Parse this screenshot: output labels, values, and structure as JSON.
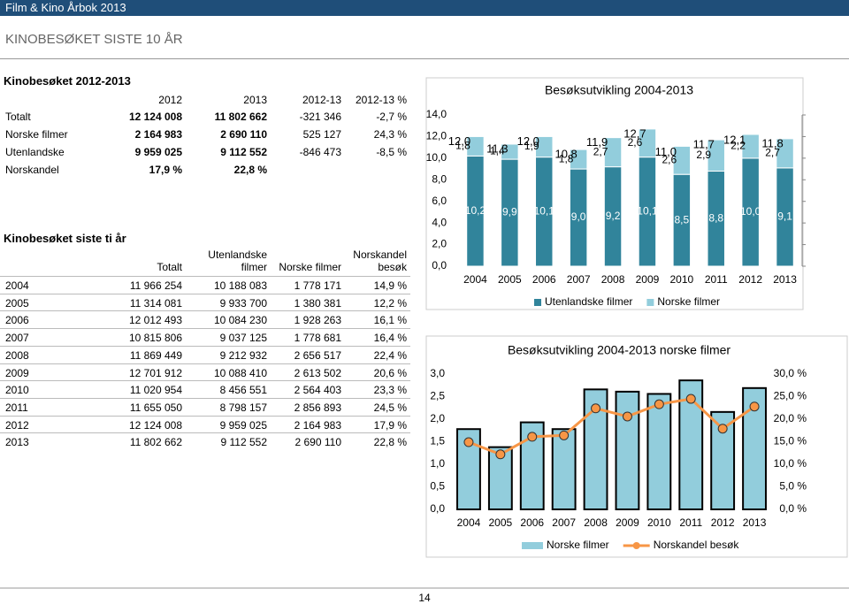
{
  "header": {
    "publication": "Film & Kino Årbok 2013",
    "section": "KINOBESØKET SISTE 10 ÅR"
  },
  "table1": {
    "title": "Kinobesøket 2012-2013",
    "columns": [
      "2012",
      "2013",
      "2012-13",
      "2012-13 %"
    ],
    "rows": [
      [
        "Totalt",
        "12 124 008",
        "11 802 662",
        "-321 346",
        "-2,7 %"
      ],
      [
        "Norske filmer",
        "2 164 983",
        "2 690 110",
        "525 127",
        "24,3 %"
      ],
      [
        "Utenlandske",
        "9 959 025",
        "9 112 552",
        "-846 473",
        "-8,5 %"
      ],
      [
        "Norskandel",
        "17,9 %",
        "22,8 %",
        "",
        ""
      ]
    ]
  },
  "table2": {
    "title": "Kinobesøket siste ti år",
    "columns": [
      "Totalt",
      "Utenlandske filmer",
      "Norske filmer",
      "Norskandel besøk"
    ],
    "rows": [
      [
        "2004",
        "11 966 254",
        "10 188 083",
        "1 778 171",
        "14,9 %"
      ],
      [
        "2005",
        "11 314 081",
        "9 933 700",
        "1 380 381",
        "12,2 %"
      ],
      [
        "2006",
        "12 012 493",
        "10 084 230",
        "1 928 263",
        "16,1 %"
      ],
      [
        "2007",
        "10 815 806",
        "9 037 125",
        "1 778 681",
        "16,4 %"
      ],
      [
        "2008",
        "11 869 449",
        "9 212 932",
        "2 656 517",
        "22,4 %"
      ],
      [
        "2009",
        "12 701 912",
        "10 088 410",
        "2 613 502",
        "20,6 %"
      ],
      [
        "2010",
        "11 020 954",
        "8 456 551",
        "2 564 403",
        "23,3 %"
      ],
      [
        "2011",
        "11 655 050",
        "8 798 157",
        "2 856 893",
        "24,5 %"
      ],
      [
        "2012",
        "12 124 008",
        "9 959 025",
        "2 164 983",
        "17,9 %"
      ],
      [
        "2013",
        "11 802 662",
        "9 112 552",
        "2 690 110",
        "22,8 %"
      ]
    ]
  },
  "chart_data": [
    {
      "type": "bar",
      "stacked": true,
      "title": "Besøksutvikling 2004-2013",
      "categories": [
        "2004",
        "2005",
        "2006",
        "2007",
        "2008",
        "2009",
        "2010",
        "2011",
        "2012",
        "2013"
      ],
      "series": [
        {
          "name": "Utenlandske filmer",
          "color": "#31849b",
          "values": [
            10.2,
            9.9,
            10.1,
            9.0,
            9.2,
            10.1,
            8.5,
            8.8,
            10.0,
            9.1
          ],
          "value_labels": [
            "10,2",
            "9,9",
            "10,1",
            "9,0",
            "9,2",
            "10,1",
            "8,5",
            "8,8",
            "10,0",
            "9,1"
          ]
        },
        {
          "name": "Norske filmer",
          "color": "#92cddc",
          "values": [
            1.8,
            1.4,
            1.9,
            1.8,
            2.7,
            2.6,
            2.6,
            2.9,
            2.2,
            2.7
          ],
          "value_labels": [
            "1,8",
            "1,4",
            "1,9",
            "1,8",
            "2,7",
            "2,6",
            "2,6",
            "2,9",
            "2,2",
            "2,7"
          ]
        }
      ],
      "totals": {
        "values": [
          12.0,
          11.3,
          12.0,
          10.8,
          11.9,
          12.7,
          11.0,
          11.7,
          12.1,
          11.8
        ],
        "value_labels": [
          "12,0",
          "11,3",
          "12,0",
          "10,8",
          "11,9",
          "12,7",
          "11,0",
          "11,7",
          "12,1",
          "11,8"
        ]
      },
      "ylim": [
        0,
        14
      ],
      "yticks": [
        {
          "value": 0,
          "label": "0,0"
        },
        {
          "value": 2,
          "label": "2,0"
        },
        {
          "value": 4,
          "label": "4,0"
        },
        {
          "value": 6,
          "label": "6,0"
        },
        {
          "value": 8,
          "label": "8,0"
        },
        {
          "value": 10,
          "label": "10,0"
        },
        {
          "value": 12,
          "label": "12,0"
        },
        {
          "value": 14,
          "label": "14,0"
        }
      ],
      "legend": "bottom"
    },
    {
      "type": "bar",
      "title": "Besøksutvikling 2004-2013 norske filmer",
      "categories": [
        "2004",
        "2005",
        "2006",
        "2007",
        "2008",
        "2009",
        "2010",
        "2011",
        "2012",
        "2013"
      ],
      "series": [
        {
          "name": "Norske filmer",
          "color": "#92cddc",
          "values": [
            1.78,
            1.38,
            1.93,
            1.78,
            2.66,
            2.61,
            2.56,
            2.86,
            2.16,
            2.69
          ]
        },
        {
          "name": "Norskandel besøk",
          "color": "#f79646",
          "type": "line",
          "axis": "y2",
          "values": [
            14.9,
            12.2,
            16.1,
            16.4,
            22.4,
            20.6,
            23.3,
            24.5,
            17.9,
            22.8
          ]
        }
      ],
      "ylim": [
        0,
        3
      ],
      "yticks": [
        {
          "value": 0,
          "label": "0,0"
        },
        {
          "value": 0.5,
          "label": "0,5"
        },
        {
          "value": 1,
          "label": "1,0"
        },
        {
          "value": 1.5,
          "label": "1,5"
        },
        {
          "value": 2,
          "label": "2,0"
        },
        {
          "value": 2.5,
          "label": "2,5"
        },
        {
          "value": 3,
          "label": "3,0"
        }
      ],
      "y2lim": [
        0,
        30
      ],
      "y2ticks": [
        {
          "value": 0,
          "label": "0,0 %"
        },
        {
          "value": 5,
          "label": "5,0 %"
        },
        {
          "value": 10,
          "label": "10,0 %"
        },
        {
          "value": 15,
          "label": "15,0 %"
        },
        {
          "value": 20,
          "label": "20,0 %"
        },
        {
          "value": 25,
          "label": "25,0 %"
        },
        {
          "value": 30,
          "label": "30,0 %"
        }
      ],
      "legend": "bottom"
    }
  ],
  "footer": {
    "page": "14"
  }
}
